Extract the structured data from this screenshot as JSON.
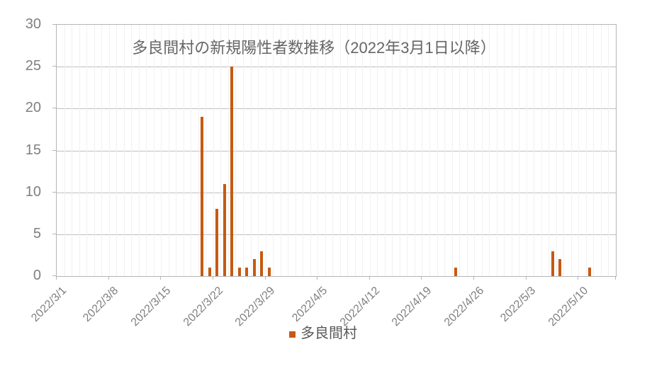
{
  "title": "多良間村の新規陽性者数推移（2022年3月1日以降）",
  "legend": {
    "label": "多良間村"
  },
  "colors": {
    "bar": "#C55A11",
    "grid_major": "#BFBFBF",
    "grid_minor": "#F1F1F1",
    "plot_border": "#B5B5B5",
    "axis_text": "#7F7F7F",
    "title_text": "#666666"
  },
  "chart_data": {
    "type": "bar",
    "title": "多良間村の新規陽性者数推移（2022年3月1日以降）",
    "series": [
      {
        "name": "多良間村",
        "points": [
          {
            "date": "2022/3/20",
            "value": 19
          },
          {
            "date": "2022/3/21",
            "value": 1
          },
          {
            "date": "2022/3/22",
            "value": 8
          },
          {
            "date": "2022/3/23",
            "value": 11
          },
          {
            "date": "2022/3/24",
            "value": 25
          },
          {
            "date": "2022/3/25",
            "value": 1
          },
          {
            "date": "2022/3/26",
            "value": 1
          },
          {
            "date": "2022/3/27",
            "value": 2
          },
          {
            "date": "2022/3/28",
            "value": 3
          },
          {
            "date": "2022/3/29",
            "value": 1
          },
          {
            "date": "2022/4/23",
            "value": 1
          },
          {
            "date": "2022/5/6",
            "value": 3
          },
          {
            "date": "2022/5/7",
            "value": 2
          },
          {
            "date": "2022/5/11",
            "value": 1
          }
        ],
        "unlisted_dates_value": 0
      }
    ],
    "x_axis": {
      "start_date": "2022/3/1",
      "end_date": "2022/5/14",
      "total_days": 75,
      "tick_interval_days": 7,
      "tick_labels": [
        "2022/3/1",
        "2022/3/8",
        "2022/3/15",
        "2022/3/22",
        "2022/3/29",
        "2022/4/5",
        "2022/4/12",
        "2022/4/19",
        "2022/4/26",
        "2022/5/3",
        "2022/5/10"
      ],
      "label_rotation_deg": 45
    },
    "y_axis": {
      "min": 0,
      "max": 30,
      "tick_step": 5,
      "tick_labels": [
        "0",
        "5",
        "10",
        "15",
        "20",
        "25",
        "30"
      ]
    },
    "grid": {
      "horizontal_major": true,
      "vertical_minor_daily": true
    },
    "legend_position": "bottom-center"
  }
}
